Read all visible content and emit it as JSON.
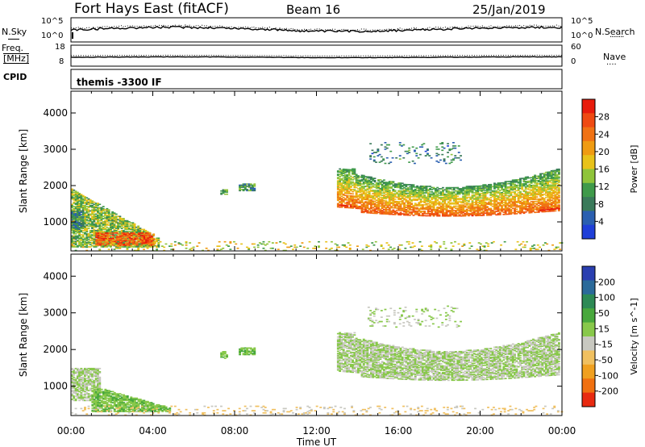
{
  "header": {
    "station": "Fort Hays East (fitACF)",
    "beam": "Beam 16",
    "date": "25/Jan/2019"
  },
  "panels": {
    "nsky_label": "N.Sky",
    "nsearch_label": "N.Search",
    "nsearch_key": "........",
    "nsky_ticks": [
      "10^5",
      "10^0"
    ],
    "nsearch_ticks": [
      "10^5",
      "10^0"
    ],
    "freq_label_1": "Freq.",
    "freq_label_2": "[MHz]",
    "freq_ticks": [
      "18",
      "8"
    ],
    "nave_label": "Nave",
    "nave_key": "....",
    "nave_ticks": [
      "60",
      "0"
    ],
    "cpid_label": "CPID",
    "cpid_value": "themis -3300 IF"
  },
  "colors": {
    "power_scale": [
      "#1f3fd8",
      "#2a5fb0",
      "#3a7a5a",
      "#3f9a4a",
      "#8fc43a",
      "#e8c21a",
      "#ef9b12",
      "#f07214",
      "#ef4a12",
      "#e81c0c"
    ],
    "velocity_scale": [
      "#2a3fb0",
      "#2b6a9a",
      "#2d8a55",
      "#48a83c",
      "#88c84a",
      "#c8c8c0",
      "#f0c060",
      "#f0a020",
      "#f07010",
      "#e82a10"
    ]
  },
  "chart_data": [
    {
      "type": "heatmap",
      "name": "power",
      "ylabel": "Slant Range [km]",
      "colorbar_label": "Power [dB]",
      "colorbar_ticks": [
        "28",
        "24",
        "20",
        "16",
        "12",
        "8",
        "4"
      ],
      "colorbar_range": [
        0,
        32
      ],
      "ylim": [
        200,
        4600
      ],
      "yticks": [
        "4000",
        "3000",
        "2000",
        "1000"
      ],
      "regions": [
        {
          "t0": 0.0,
          "t1": 4.3,
          "r0": 300,
          "r1": 1900,
          "level": 14,
          "shape": "falling"
        },
        {
          "t0": 1.2,
          "t1": 4.0,
          "r0": 350,
          "r1": 700,
          "level": 26,
          "shape": "band"
        },
        {
          "t0": 0.0,
          "t1": 0.6,
          "r0": 800,
          "r1": 1300,
          "level": 8,
          "shape": "band"
        },
        {
          "t0": 7.3,
          "t1": 7.6,
          "r0": 1750,
          "r1": 1900,
          "level": 12,
          "shape": "band"
        },
        {
          "t0": 8.2,
          "t1": 9.0,
          "r0": 1850,
          "r1": 2050,
          "level": 10,
          "shape": "band"
        },
        {
          "t0": 13.0,
          "t1": 23.8,
          "r0": 1150,
          "r1": 2450,
          "level": 18,
          "shape": "bowl"
        },
        {
          "t0": 13.0,
          "t1": 23.8,
          "r0": 1200,
          "r1": 1450,
          "level": 28,
          "shape": "bowl"
        },
        {
          "t0": 14.5,
          "t1": 19.0,
          "r0": 2600,
          "r1": 3200,
          "level": 8,
          "shape": "sparse"
        },
        {
          "t0": 0.0,
          "t1": 24.0,
          "r0": 200,
          "r1": 450,
          "level": 16,
          "shape": "sparse"
        }
      ]
    },
    {
      "type": "heatmap",
      "name": "velocity",
      "ylabel": "Slant Range [km]",
      "colorbar_label": "Velocity [m s^-1]",
      "colorbar_ticks": [
        "200",
        "100",
        "50",
        "15",
        "-15",
        "-50",
        "-100",
        "-200"
      ],
      "colorbar_range": [
        -250,
        250
      ],
      "ylim": [
        200,
        4600
      ],
      "yticks": [
        "4000",
        "3000",
        "2000",
        "1000"
      ],
      "xlabel": "Time UT",
      "xticks": [
        "00:00",
        "04:00",
        "08:00",
        "12:00",
        "16:00",
        "20:00",
        "00:00"
      ],
      "xlim": [
        0,
        24
      ],
      "regions": [
        {
          "t0": 0.0,
          "t1": 1.4,
          "r0": 600,
          "r1": 1500,
          "level": 0,
          "shape": "band"
        },
        {
          "t0": 1.0,
          "t1": 4.8,
          "r0": 300,
          "r1": 1000,
          "level": 40,
          "shape": "falling"
        },
        {
          "t0": 7.3,
          "t1": 7.6,
          "r0": 1750,
          "r1": 1950,
          "level": 40,
          "shape": "band"
        },
        {
          "t0": 8.2,
          "t1": 9.0,
          "r0": 1850,
          "r1": 2050,
          "level": 40,
          "shape": "band"
        },
        {
          "t0": 13.0,
          "t1": 23.8,
          "r0": 1150,
          "r1": 2450,
          "level": 0,
          "shape": "bowl"
        },
        {
          "t0": 14.5,
          "t1": 19.0,
          "r0": 2600,
          "r1": 3200,
          "level": 0,
          "shape": "sparse"
        },
        {
          "t0": 0.0,
          "t1": 24.0,
          "r0": 200,
          "r1": 450,
          "level": -60,
          "shape": "sparse"
        }
      ]
    }
  ]
}
